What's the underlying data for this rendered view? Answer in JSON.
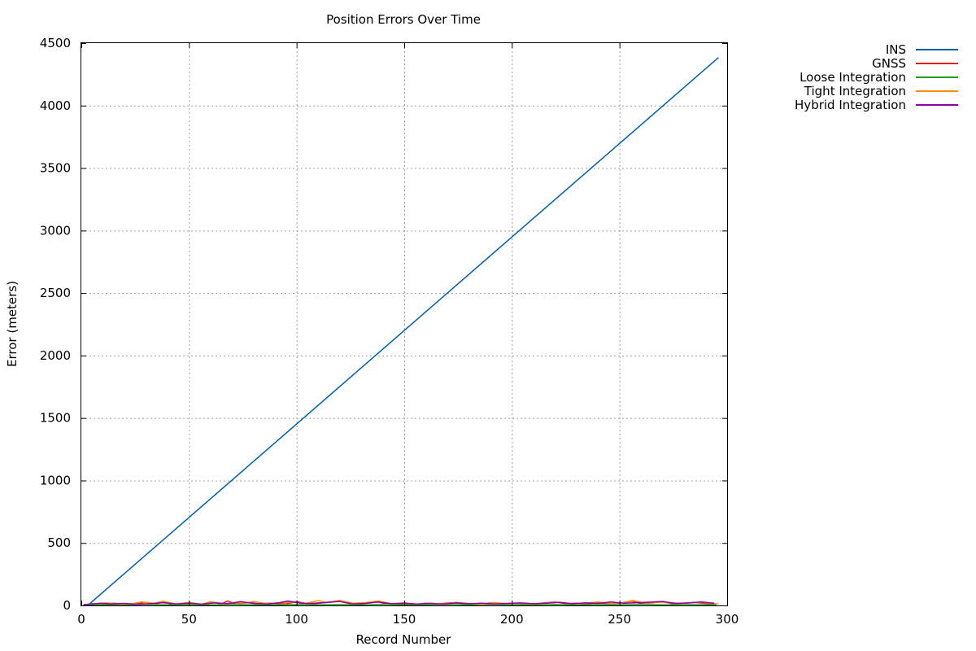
{
  "chart_data": {
    "type": "line",
    "title": "Position Errors Over Time",
    "xlabel": "Record Number",
    "ylabel": "Error (meters)",
    "xlim": [
      0,
      300
    ],
    "ylim": [
      0,
      4500
    ],
    "x_ticks": [
      0,
      50,
      100,
      150,
      200,
      250,
      300
    ],
    "y_ticks": [
      0,
      500,
      1000,
      1500,
      2000,
      2500,
      3000,
      3500,
      4000,
      4500
    ],
    "grid": true,
    "legend_position": "top-right outside",
    "series": [
      {
        "name": "INS",
        "color": "#005ea8",
        "x": [
          3,
          296
        ],
        "y": [
          0,
          4385
        ]
      },
      {
        "name": "GNSS",
        "color": "#e41a1c",
        "x": [
          1,
          5,
          10,
          15,
          20,
          25,
          30,
          35,
          38,
          42,
          48,
          50,
          55,
          60,
          65,
          68,
          72,
          78,
          82,
          88,
          95,
          100,
          105,
          110,
          115,
          120,
          125,
          130,
          137,
          142,
          148,
          155,
          160,
          165,
          172,
          178,
          185,
          190,
          195,
          200,
          205,
          210,
          215,
          220,
          225,
          230,
          235,
          240,
          245,
          250,
          256,
          260,
          265,
          270,
          275,
          280,
          285,
          290,
          295
        ],
        "y": [
          5,
          15,
          10,
          18,
          8,
          12,
          25,
          14,
          30,
          10,
          8,
          22,
          6,
          28,
          12,
          35,
          10,
          25,
          14,
          18,
          12,
          30,
          15,
          20,
          25,
          35,
          14,
          18,
          30,
          12,
          15,
          8,
          18,
          12,
          22,
          15,
          10,
          20,
          12,
          18,
          15,
          12,
          20,
          28,
          15,
          18,
          12,
          22,
          14,
          18,
          35,
          14,
          20,
          30,
          12,
          18,
          25,
          15,
          10
        ]
      },
      {
        "name": "Loose Integration",
        "color": "#1fa01f",
        "x": [
          1,
          10,
          20,
          30,
          40,
          50,
          60,
          70,
          80,
          90,
          100,
          110,
          120,
          130,
          140,
          150,
          160,
          170,
          180,
          190,
          200,
          210,
          220,
          230,
          240,
          250,
          260,
          270,
          280,
          290,
          295
        ],
        "y": [
          3,
          6,
          4,
          8,
          5,
          7,
          4,
          9,
          6,
          5,
          8,
          6,
          7,
          5,
          9,
          4,
          6,
          8,
          5,
          7,
          6,
          5,
          8,
          4,
          7,
          6,
          9,
          5,
          7,
          6,
          4
        ]
      },
      {
        "name": "Tight Integration",
        "color": "#ff8c00",
        "x": [
          1,
          6,
          12,
          18,
          24,
          28,
          34,
          38,
          44,
          50,
          56,
          60,
          66,
          70,
          76,
          80,
          86,
          92,
          98,
          104,
          110,
          114,
          120,
          126,
          132,
          138,
          144,
          150,
          156,
          162,
          168,
          174,
          180,
          186,
          192,
          198,
          204,
          210,
          216,
          222,
          228,
          234,
          240,
          246,
          252,
          256,
          262,
          268,
          274,
          280,
          286,
          292,
          296
        ],
        "y": [
          4,
          12,
          20,
          10,
          15,
          28,
          18,
          34,
          12,
          25,
          10,
          30,
          14,
          22,
          18,
          32,
          15,
          20,
          28,
          16,
          38,
          25,
          40,
          18,
          22,
          35,
          14,
          20,
          10,
          18,
          12,
          24,
          16,
          10,
          22,
          15,
          18,
          12,
          20,
          26,
          14,
          18,
          28,
          16,
          22,
          40,
          18,
          26,
          20,
          16,
          24,
          18,
          12
        ]
      },
      {
        "name": "Hybrid Integration",
        "color": "#8b00a8",
        "x": [
          1,
          5,
          9,
          14,
          20,
          26,
          32,
          38,
          44,
          50,
          56,
          62,
          68,
          74,
          80,
          86,
          92,
          96,
          102,
          108,
          114,
          120,
          126,
          132,
          138,
          144,
          150,
          156,
          162,
          168,
          174,
          180,
          186,
          192,
          198,
          204,
          210,
          216,
          222,
          228,
          234,
          240,
          246,
          252,
          258,
          264,
          270,
          276,
          282,
          288,
          294
        ],
        "y": [
          6,
          10,
          18,
          12,
          16,
          8,
          14,
          22,
          12,
          18,
          10,
          20,
          14,
          30,
          16,
          12,
          22,
          35,
          18,
          14,
          25,
          32,
          12,
          16,
          28,
          14,
          18,
          12,
          16,
          10,
          20,
          14,
          18,
          12,
          16,
          20,
          14,
          18,
          24,
          14,
          20,
          16,
          28,
          18,
          22,
          26,
          32,
          16,
          20,
          28,
          18
        ]
      }
    ]
  }
}
